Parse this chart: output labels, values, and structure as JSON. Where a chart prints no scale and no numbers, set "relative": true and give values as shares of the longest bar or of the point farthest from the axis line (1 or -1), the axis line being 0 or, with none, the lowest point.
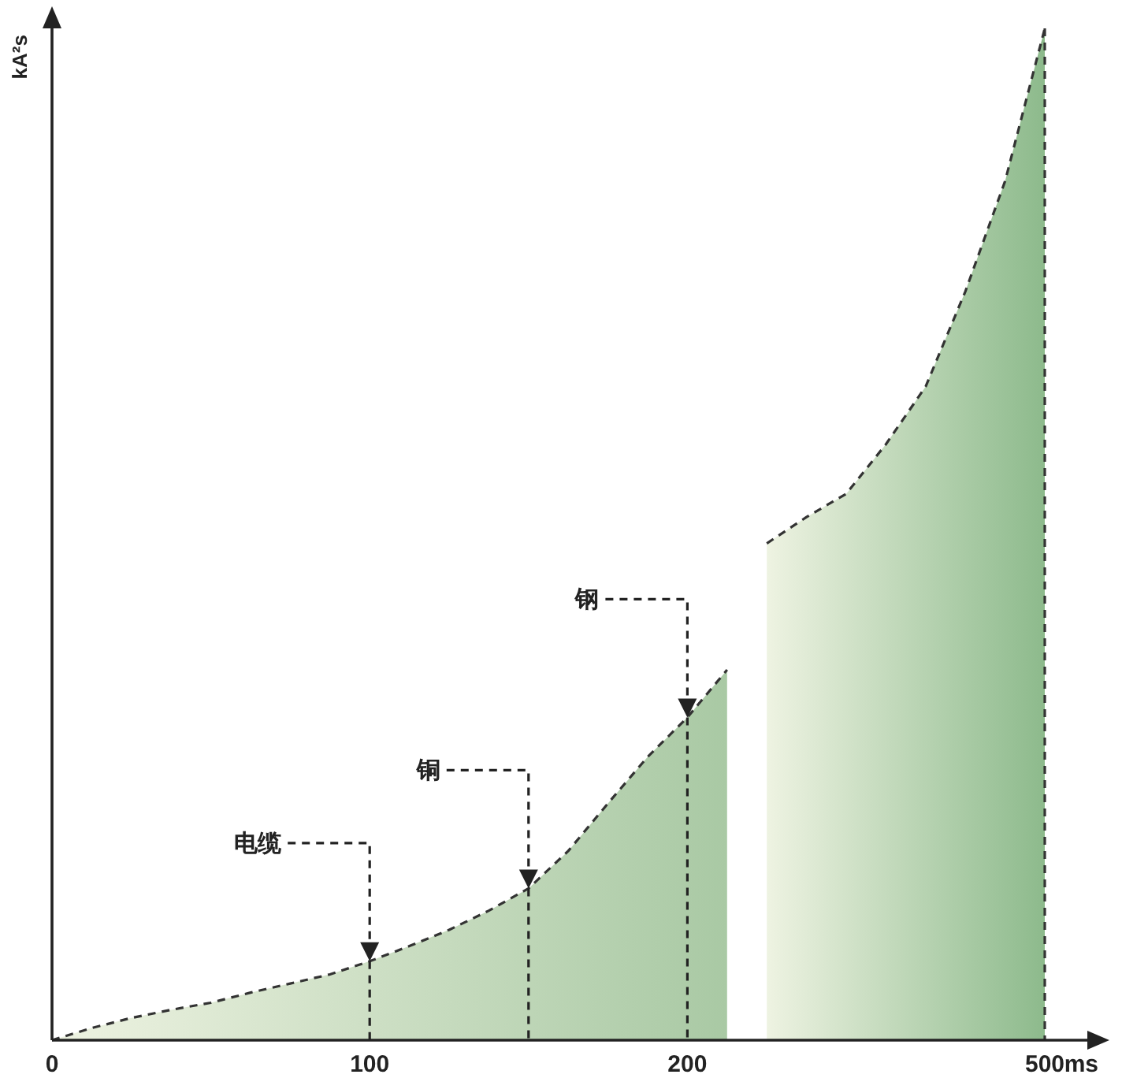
{
  "chart_data": {
    "type": "area",
    "relative": true,
    "ylabel": "kA²s",
    "xlabel": "ms",
    "line_style": "dashed",
    "categories": [
      "0",
      null,
      null,
      null,
      null,
      null,
      null,
      null,
      "100",
      null,
      null,
      null,
      null,
      null,
      null,
      null,
      "200",
      null,
      null,
      null,
      null,
      null,
      null,
      null,
      null,
      "500"
    ],
    "series": [
      {
        "color": "#a9c9a4",
        "values": [
          0,
          0.012,
          0.022,
          0.03,
          0.037,
          0.047,
          0.056,
          0.065,
          0.078,
          0.093,
          0.109,
          0.128,
          0.15,
          0.187,
          0.234,
          0.28,
          0.319,
          0.366,
          null,
          null,
          null,
          null,
          null,
          null,
          null,
          null
        ]
      },
      {
        "color": "#8dba8c",
        "values": [
          null,
          null,
          null,
          null,
          null,
          null,
          null,
          null,
          null,
          null,
          null,
          null,
          null,
          null,
          null,
          null,
          null,
          null,
          0.491,
          0.517,
          0.54,
          0.589,
          0.646,
          0.74,
          0.849,
          1
        ]
      }
    ],
    "annotations": [
      "电缆",
      "铜",
      "钢"
    ]
  }
}
